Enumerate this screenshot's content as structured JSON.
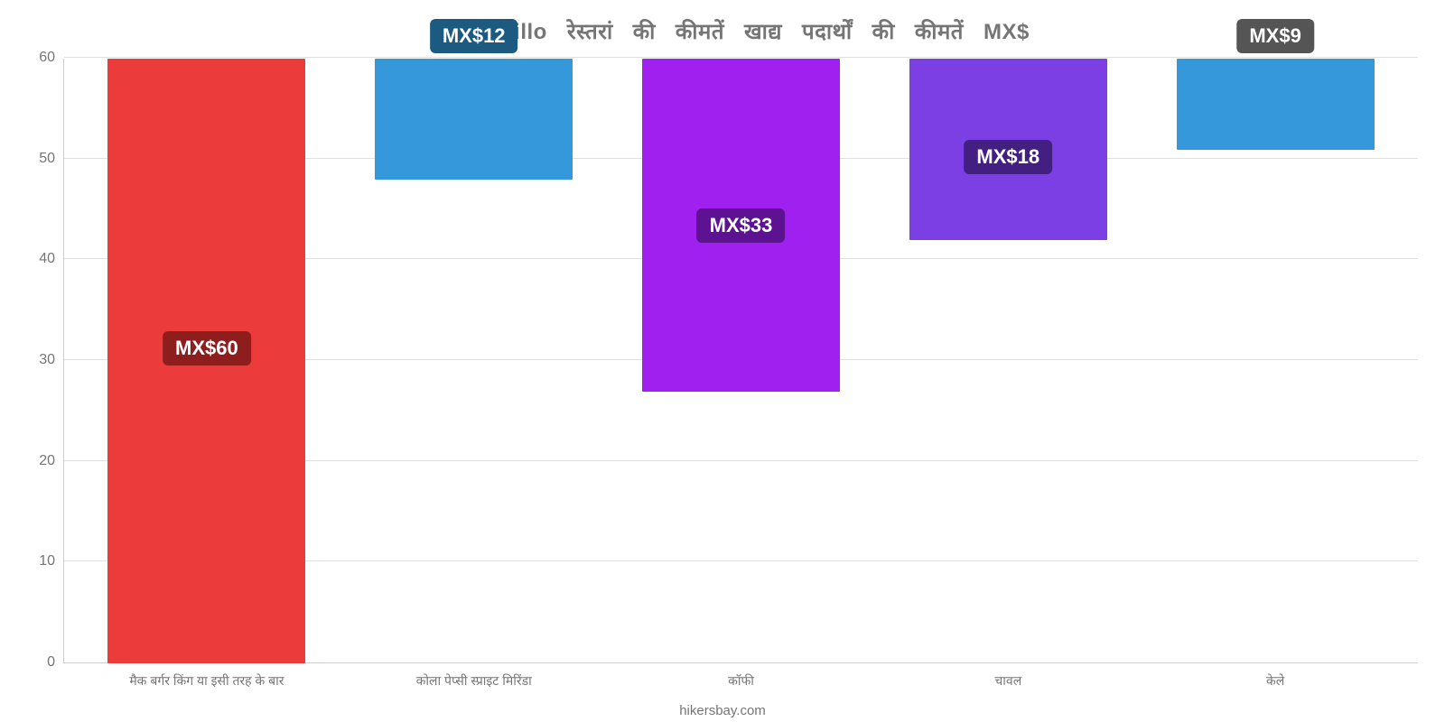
{
  "chart": {
    "type": "bar",
    "title_words": [
      "Manzanillo",
      "रेस्तरां",
      "की",
      "कीमतें",
      "खाद्य",
      "पदार्थों",
      "की",
      "कीमतें",
      "MX$"
    ],
    "title_fontsize": 24,
    "title_color": "#757575",
    "background_color": "#ffffff",
    "grid_color": "#e0e0e0",
    "axis_color": "#cccccc",
    "tick_color": "#757575",
    "tick_fontsize": 16,
    "xlabel_fontsize": 14,
    "ylim": [
      0,
      60
    ],
    "yticks": [
      0,
      10,
      20,
      30,
      40,
      50,
      60
    ],
    "bar_width_ratio": 0.74,
    "categories": [
      "मैक बर्गर किंग या इसी तरह के बार",
      "कोला पेप्सी स्प्राइट मिरिंडा",
      "कॉफी",
      "चावल",
      "केले"
    ],
    "values": [
      60,
      12,
      33,
      18,
      9
    ],
    "value_labels": [
      "MX$60",
      "MX$12",
      "MX$33",
      "MX$18",
      "MX$9"
    ],
    "bar_colors": [
      "#eb3b3b",
      "#3498db",
      "#a020f0",
      "#7b3fe4",
      "#3498db"
    ],
    "badge_colors": [
      "#8e1e1e",
      "#1d5a82",
      "#5c1291",
      "#431f82",
      "#555555"
    ],
    "badge_text_color": "#ffffff",
    "badge_fontsize": 22,
    "label_positions": [
      "inside",
      "outside",
      "inside",
      "inside",
      "outside"
    ],
    "watermark": "hikersbay.com"
  }
}
